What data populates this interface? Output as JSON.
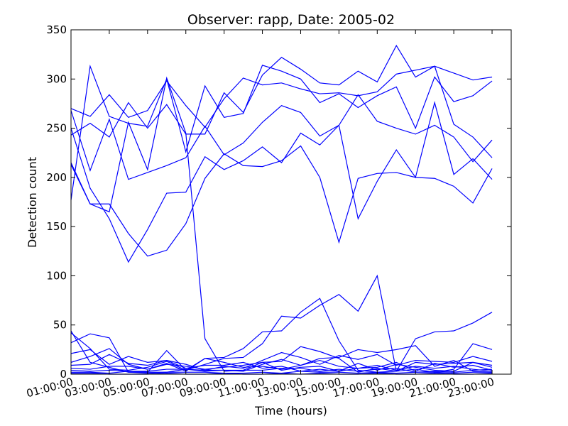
{
  "chart_data": {
    "type": "line",
    "title": "Observer: rapp, Date: 2005-02",
    "xlabel": "Time (hours)",
    "ylabel": "Detection count",
    "xlim": [
      1,
      24
    ],
    "ylim": [
      0,
      350
    ],
    "x_ticks": [
      1,
      3,
      5,
      7,
      9,
      11,
      13,
      15,
      17,
      19,
      21,
      23
    ],
    "x_tick_labels": [
      "01:00:00",
      "03:00:00",
      "05:00:00",
      "07:00:00",
      "09:00:00",
      "11:00:00",
      "13:00:00",
      "15:00:00",
      "17:00:00",
      "19:00:00",
      "21:00:00",
      "23:00:00"
    ],
    "y_ticks": [
      0,
      50,
      100,
      150,
      200,
      250,
      300,
      350
    ],
    "y_tick_labels": [
      "0",
      "50",
      "100",
      "150",
      "200",
      "250",
      "300",
      "350"
    ],
    "line_color": "#0000ff",
    "grid": false,
    "x": [
      1,
      2,
      3,
      4,
      5,
      6,
      7,
      8,
      9,
      10,
      11,
      12,
      13,
      14,
      15,
      16,
      17,
      18,
      19,
      20,
      21,
      22,
      23,
      24
    ],
    "series": [
      {
        "values": [
          177,
          313,
          262,
          255,
          252,
          300,
          226,
          293,
          261,
          265,
          314,
          308,
          300,
          276,
          285,
          271,
          283,
          292,
          250,
          302,
          277,
          283,
          298,
          null
        ]
      },
      {
        "values": [
          270,
          262,
          284,
          261,
          268,
          298,
          273,
          251,
          280,
          301,
          294,
          296,
          290,
          285,
          286,
          283,
          287,
          305,
          309,
          313,
          306,
          299,
          302,
          null
        ]
      },
      {
        "values": [
          243,
          255,
          241,
          276,
          250,
          274,
          244,
          244,
          286,
          266,
          304,
          322,
          310,
          296,
          294,
          308,
          297,
          334,
          302,
          313,
          254,
          241,
          220,
          null
        ]
      },
      {
        "values": [
          268,
          207,
          259,
          198,
          205,
          212,
          220,
          252,
          223,
          235,
          256,
          273,
          266,
          242,
          253,
          158,
          196,
          228,
          200,
          276,
          203,
          219,
          198,
          null
        ]
      },
      {
        "values": [
          250,
          189,
          158,
          114,
          147,
          184,
          185,
          221,
          208,
          217,
          231,
          215,
          245,
          233,
          253,
          284,
          257,
          250,
          244,
          253,
          241,
          216,
          238,
          null
        ]
      },
      {
        "values": [
          215,
          173,
          173,
          143,
          120,
          126,
          153,
          199,
          224,
          212,
          211,
          217,
          232,
          200,
          134,
          199,
          204,
          205,
          200,
          199,
          191,
          174,
          209,
          null
        ]
      },
      {
        "values": [
          213,
          173,
          165,
          256,
          208,
          301,
          245,
          36,
          3,
          4,
          12,
          13,
          28,
          23,
          16,
          2,
          6,
          3,
          12,
          10,
          11,
          12,
          9,
          null
        ]
      },
      {
        "values": [
          42,
          26,
          5,
          4,
          7,
          13,
          4,
          16,
          17,
          26,
          43,
          44,
          63,
          77,
          34,
          4,
          2,
          3,
          36,
          43,
          44,
          52,
          63,
          null
        ]
      },
      {
        "values": [
          44,
          12,
          7,
          2,
          2,
          24,
          4,
          10,
          16,
          17,
          31,
          59,
          57,
          70,
          81,
          64,
          100,
          3,
          5,
          2,
          5,
          31,
          25,
          null
        ]
      },
      {
        "values": [
          32,
          41,
          37,
          2,
          1,
          2,
          5,
          4,
          4,
          3,
          10,
          15,
          9,
          16,
          17,
          25,
          22,
          25,
          29,
          8,
          14,
          3,
          2,
          null
        ]
      },
      {
        "values": [
          21,
          25,
          10,
          18,
          12,
          14,
          10,
          4,
          8,
          6,
          14,
          22,
          17,
          10,
          19,
          15,
          20,
          9,
          14,
          13,
          12,
          18,
          13,
          null
        ]
      },
      {
        "values": [
          12,
          18,
          26,
          10,
          5,
          11,
          3,
          16,
          12,
          7,
          8,
          5,
          9,
          14,
          8,
          6,
          7,
          12,
          3,
          11,
          7,
          9,
          4,
          null
        ]
      },
      {
        "values": [
          9,
          10,
          20,
          11,
          9,
          14,
          6,
          9,
          9,
          12,
          6,
          8,
          3,
          5,
          3,
          11,
          4,
          10,
          7,
          4,
          3,
          12,
          7,
          null
        ]
      },
      {
        "values": [
          6,
          5,
          8,
          8,
          5,
          10,
          8,
          5,
          7,
          9,
          12,
          4,
          7,
          8,
          3,
          6,
          9,
          4,
          8,
          6,
          8,
          5,
          3,
          null
        ]
      },
      {
        "values": [
          4,
          3,
          4,
          3,
          3,
          5,
          5,
          3,
          4,
          4,
          4,
          6,
          6,
          3,
          5,
          3,
          5,
          6,
          2,
          3,
          2,
          4,
          5,
          null
        ]
      },
      {
        "values": [
          2,
          2,
          1,
          3,
          2,
          2,
          2,
          2,
          1,
          1,
          2,
          1,
          3,
          2,
          2,
          1,
          2,
          1,
          2,
          2,
          1,
          2,
          2,
          null
        ]
      },
      {
        "values": [
          1,
          1,
          0,
          0,
          0,
          1,
          0,
          0,
          1,
          0,
          0,
          1,
          0,
          1,
          0,
          0,
          1,
          0,
          0,
          1,
          0,
          0,
          1,
          null
        ]
      }
    ]
  }
}
